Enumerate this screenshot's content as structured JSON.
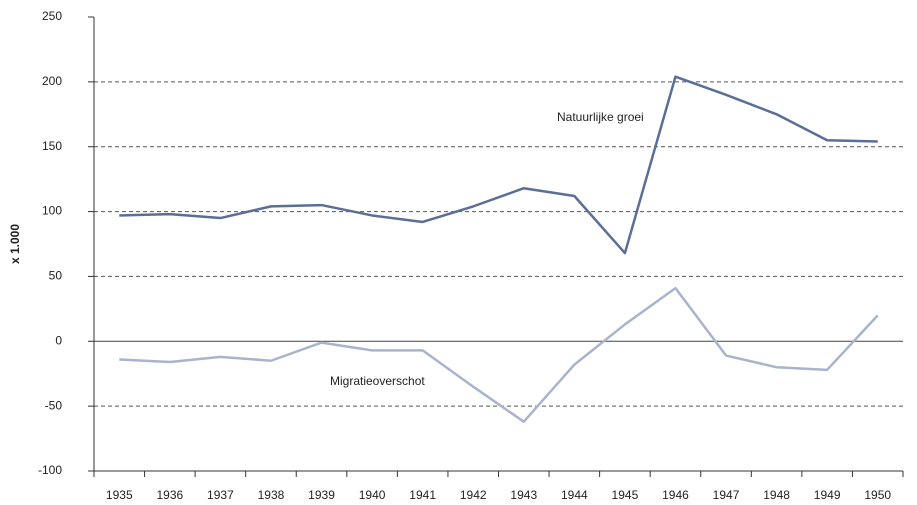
{
  "chart_data": {
    "type": "line",
    "y_label": "x 1.000",
    "categories": [
      "1935",
      "1936",
      "1937",
      "1938",
      "1939",
      "1940",
      "1941",
      "1942",
      "1943",
      "1944",
      "1945",
      "1946",
      "1947",
      "1948",
      "1949",
      "1950"
    ],
    "series": [
      {
        "name": "Natuurlijke groei",
        "color": "#5a6e96",
        "values": [
          97,
          98,
          95,
          104,
          105,
          97,
          92,
          104,
          118,
          112,
          68,
          204,
          190,
          175,
          155,
          154
        ]
      },
      {
        "name": "Migratieoverschot",
        "color": "#a9b4cc",
        "values": [
          -14,
          -16,
          -12,
          -15,
          -1,
          -7,
          -7,
          -35,
          -62,
          -18,
          13,
          41,
          -11,
          -20,
          -22,
          20
        ]
      }
    ],
    "ylim": [
      -100,
      250
    ],
    "yticks": [
      -100,
      -50,
      0,
      50,
      100,
      150,
      200,
      250
    ],
    "grid": true
  }
}
